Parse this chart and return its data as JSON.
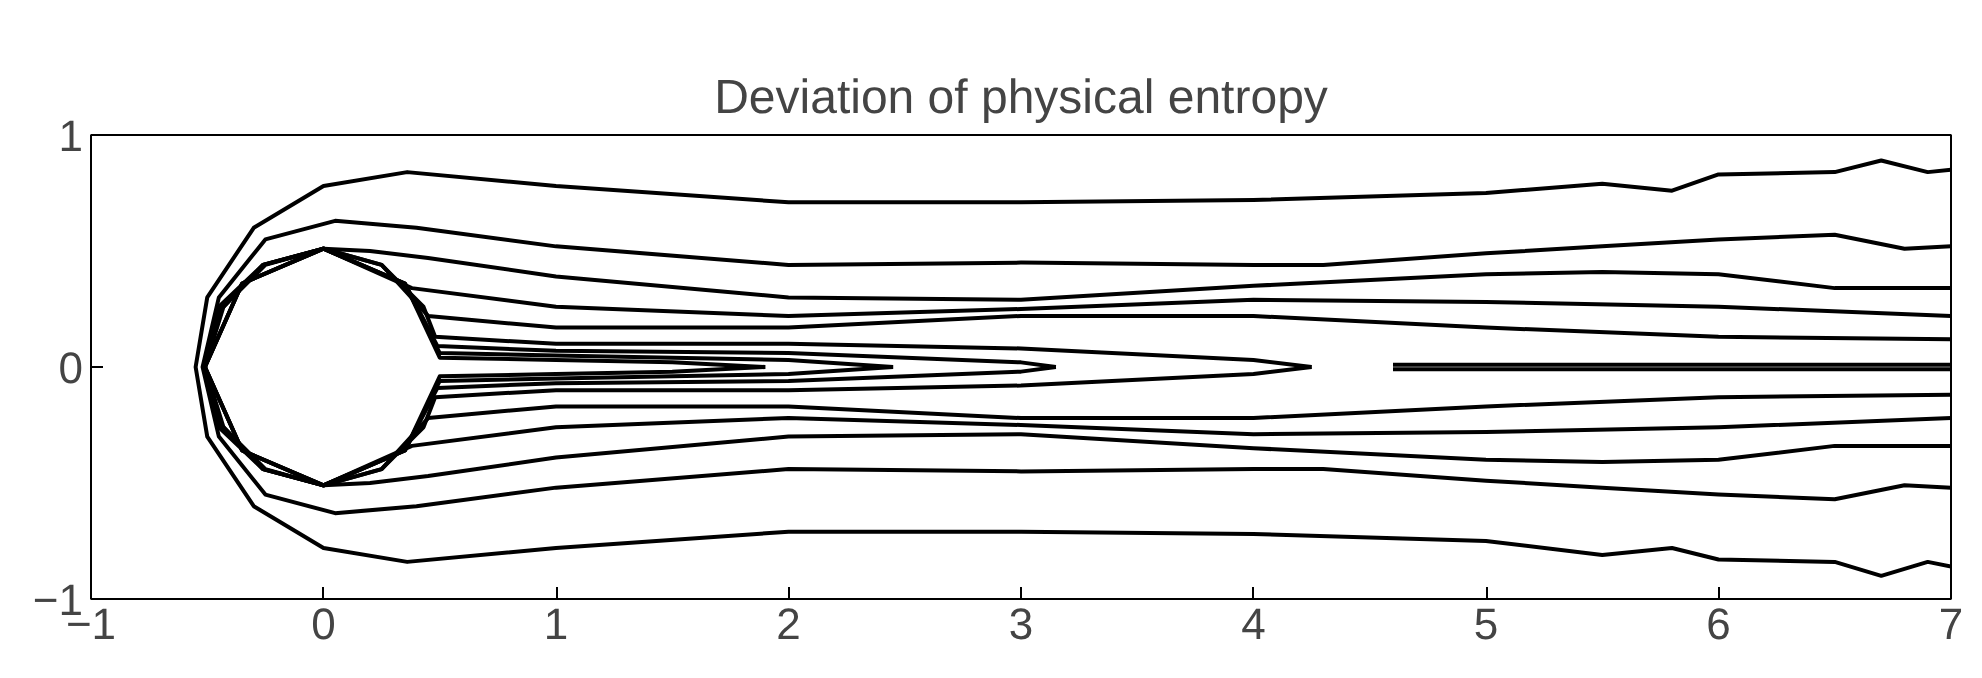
{
  "chart_data": {
    "type": "line",
    "title": "Deviation of physical entropy",
    "xlim": [
      -1,
      7
    ],
    "ylim": [
      -1,
      1
    ],
    "xticks": [
      -1,
      0,
      1,
      2,
      3,
      4,
      5,
      6,
      7
    ],
    "yticks": [
      -1,
      0,
      1
    ],
    "grid": false,
    "marker": "none",
    "line_style": "solid",
    "series": [
      {
        "color": "#000000",
        "x": [
          7,
          6.9,
          6.7,
          6.5,
          6,
          5.8,
          5.5,
          5,
          4,
          3,
          2,
          1,
          0.36,
          0,
          -0.3,
          -0.5,
          -0.55,
          -0.5,
          -0.3,
          0,
          0.36,
          1,
          2,
          3,
          4,
          5,
          5.5,
          5.8,
          6,
          6.5,
          6.7,
          6.9,
          7
        ],
        "values": [
          0.85,
          0.84,
          0.89,
          0.84,
          0.83,
          0.76,
          0.79,
          0.75,
          0.72,
          0.71,
          0.71,
          0.78,
          0.84,
          0.78,
          0.6,
          0.3,
          0,
          -0.3,
          -0.6,
          -0.78,
          -0.84,
          -0.78,
          -0.71,
          -0.71,
          -0.72,
          -0.75,
          -0.81,
          -0.78,
          -0.83,
          -0.84,
          -0.9,
          -0.84,
          -0.86
        ]
      },
      {
        "color": "#000000",
        "x": [
          7,
          6.8,
          6.5,
          6,
          5.5,
          5,
          4.3,
          4,
          3,
          2,
          1,
          0.4,
          0.05,
          -0.25,
          -0.45,
          -0.52,
          -0.45,
          -0.25,
          0.05,
          0.4,
          1,
          2,
          3,
          4,
          4.3,
          5,
          5.5,
          6,
          6.5,
          6.8,
          7
        ],
        "values": [
          0.52,
          0.51,
          0.57,
          0.55,
          0.52,
          0.49,
          0.44,
          0.44,
          0.45,
          0.44,
          0.52,
          0.6,
          0.63,
          0.55,
          0.3,
          0,
          -0.3,
          -0.55,
          -0.63,
          -0.6,
          -0.52,
          -0.44,
          -0.45,
          -0.44,
          -0.44,
          -0.49,
          -0.52,
          -0.55,
          -0.57,
          -0.51,
          -0.52
        ]
      },
      {
        "color": "#000000",
        "x": [
          7,
          6.5,
          6,
          5.5,
          5,
          4,
          3,
          2,
          1,
          0.45,
          0.2,
          0,
          -0.26,
          -0.45,
          -0.51,
          -0.45,
          -0.26,
          0,
          0.2,
          0.45,
          1,
          2,
          3,
          4,
          5,
          5.5,
          6,
          6.5,
          7
        ],
        "values": [
          0.34,
          0.34,
          0.4,
          0.41,
          0.4,
          0.35,
          0.29,
          0.3,
          0.39,
          0.47,
          0.5,
          0.51,
          0.44,
          0.26,
          0,
          -0.26,
          -0.44,
          -0.51,
          -0.5,
          -0.47,
          -0.39,
          -0.3,
          -0.29,
          -0.35,
          -0.4,
          -0.41,
          -0.4,
          -0.34,
          -0.34
        ]
      },
      {
        "color": "#000000",
        "x": [
          7,
          6,
          5,
          4,
          3,
          2,
          1,
          0.38,
          0,
          -0.26,
          -0.44,
          -0.51,
          -0.44,
          -0.26,
          0,
          0.38,
          1,
          2,
          3,
          4,
          5,
          6,
          7
        ],
        "values": [
          0.22,
          0.26,
          0.28,
          0.29,
          0.25,
          0.22,
          0.26,
          0.34,
          0.51,
          0.44,
          0.25,
          0,
          -0.25,
          -0.44,
          -0.51,
          -0.34,
          -0.26,
          -0.22,
          -0.25,
          -0.29,
          -0.28,
          -0.26,
          -0.22
        ]
      },
      {
        "color": "#000000",
        "x": [
          7,
          6,
          5,
          4,
          3,
          2,
          1,
          0.45,
          0.25,
          0,
          -0.26,
          -0.44,
          -0.51,
          -0.44,
          -0.26,
          0,
          0.25,
          0.45,
          1,
          2,
          3,
          4,
          5,
          6,
          7
        ],
        "values": [
          0.12,
          0.13,
          0.17,
          0.22,
          0.22,
          0.17,
          0.17,
          0.22,
          0.44,
          0.51,
          0.44,
          0.25,
          0,
          -0.25,
          -0.44,
          -0.51,
          -0.44,
          -0.22,
          -0.17,
          -0.17,
          -0.22,
          -0.22,
          -0.17,
          -0.13,
          -0.12
        ]
      },
      {
        "color": "#000000",
        "x": [
          4.25,
          4,
          3,
          2,
          1,
          0.48,
          0.43,
          0.25,
          0,
          -0.25,
          -0.43,
          -0.51
        ],
        "values": [
          0,
          0.03,
          0.08,
          0.1,
          0.1,
          0.13,
          0.26,
          0.44,
          0.51,
          0.44,
          0.26,
          0
        ]
      },
      {
        "color": "#000000",
        "x": [
          -0.51,
          -0.43,
          -0.25,
          0,
          0.25,
          0.43,
          0.48,
          1,
          2,
          3,
          4,
          4.25
        ],
        "values": [
          0,
          -0.26,
          -0.44,
          -0.51,
          -0.44,
          -0.26,
          -0.13,
          -0.1,
          -0.1,
          -0.08,
          -0.03,
          0
        ]
      },
      {
        "color": "#000000",
        "x": [
          3.15,
          3,
          2,
          1,
          0.49,
          0.35,
          0,
          -0.35,
          -0.51
        ],
        "values": [
          0,
          0.02,
          0.06,
          0.07,
          0.09,
          0.36,
          0.51,
          0.36,
          0
        ]
      },
      {
        "color": "#000000",
        "x": [
          -0.51,
          -0.35,
          0,
          0.35,
          0.49,
          1,
          2,
          3,
          3.15
        ],
        "values": [
          0,
          -0.36,
          -0.51,
          -0.36,
          -0.09,
          -0.07,
          -0.06,
          -0.02,
          0
        ]
      },
      {
        "color": "#000000",
        "x": [
          2.45,
          2,
          1,
          0.5,
          0.35,
          0,
          -0.35,
          -0.51
        ],
        "values": [
          0,
          0.03,
          0.05,
          0.06,
          0.36,
          0.51,
          0.36,
          0
        ]
      },
      {
        "color": "#000000",
        "x": [
          -0.51,
          -0.35,
          0,
          0.35,
          0.5,
          1,
          2,
          2.45
        ],
        "values": [
          0,
          -0.36,
          -0.51,
          -0.36,
          -0.06,
          -0.05,
          -0.03,
          0
        ]
      },
      {
        "color": "#000000",
        "x": [
          1.9,
          1.5,
          1,
          0.5,
          0.35,
          0,
          -0.35,
          -0.51
        ],
        "values": [
          0,
          0.02,
          0.03,
          0.04,
          0.36,
          0.51,
          0.36,
          0
        ]
      },
      {
        "color": "#000000",
        "x": [
          -0.51,
          -0.35,
          0,
          0.35,
          0.5,
          1,
          1.5,
          1.9
        ],
        "values": [
          0,
          -0.36,
          -0.51,
          -0.36,
          -0.04,
          -0.03,
          -0.02,
          0
        ]
      },
      {
        "color": "#000000",
        "x": [
          4.6,
          5.5,
          7
        ],
        "values": [
          0.01,
          0.01,
          0.01
        ]
      },
      {
        "color": "#000000",
        "x": [
          4.6,
          5.5,
          7
        ],
        "values": [
          -0.01,
          -0.01,
          -0.01
        ]
      }
    ]
  }
}
